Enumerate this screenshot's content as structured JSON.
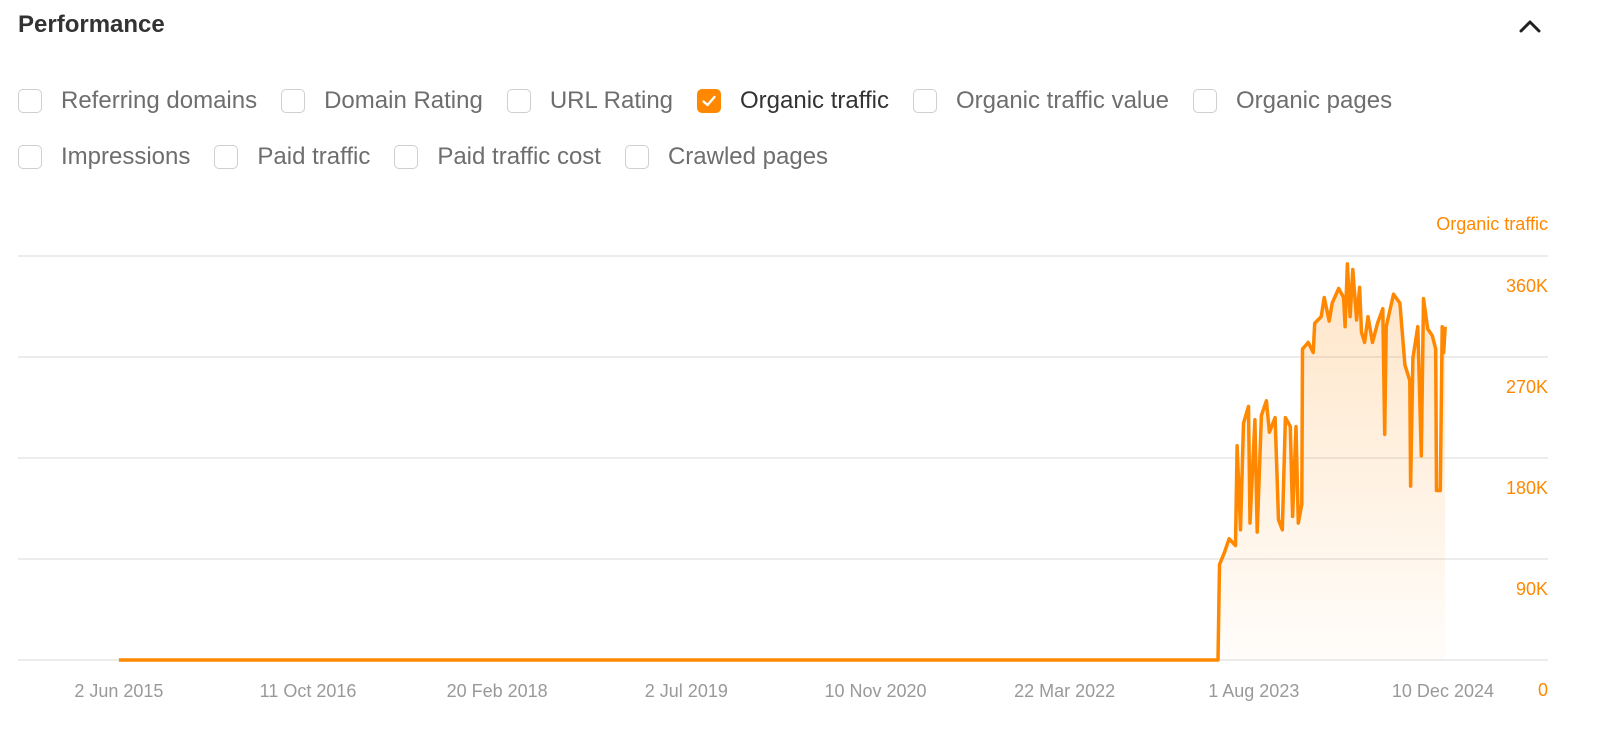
{
  "header": {
    "title": "Performance",
    "collapse_icon": "chevron-up-icon"
  },
  "metrics": [
    {
      "label": "Referring domains",
      "checked": false
    },
    {
      "label": "Domain Rating",
      "checked": false
    },
    {
      "label": "URL Rating",
      "checked": false
    },
    {
      "label": "Organic traffic",
      "checked": true
    },
    {
      "label": "Organic traffic value",
      "checked": false
    },
    {
      "label": "Organic pages",
      "checked": false
    },
    {
      "label": "Impressions",
      "checked": false
    },
    {
      "label": "Paid traffic",
      "checked": false
    },
    {
      "label": "Paid traffic cost",
      "checked": false
    },
    {
      "label": "Crawled pages",
      "checked": false
    }
  ],
  "colors": {
    "accent": "#ff8800",
    "grid": "#e6e6e6",
    "axis_text": "#999999"
  },
  "chart_data": {
    "type": "area",
    "title": "",
    "xlabel": "",
    "ylabel": "Organic traffic",
    "xlim": [
      "2014-09-10",
      "2025-09-12"
    ],
    "ylim": [
      0,
      360000
    ],
    "grid": true,
    "y_axis_position": "right",
    "y_ticks": [
      {
        "value": 0,
        "label": "0"
      },
      {
        "value": 90000,
        "label": "90K"
      },
      {
        "value": 180000,
        "label": "180K"
      },
      {
        "value": 270000,
        "label": "270K"
      },
      {
        "value": 360000,
        "label": "360K"
      }
    ],
    "x_ticks": [
      {
        "date": "2015-06-02",
        "label": "2 Jun 2015"
      },
      {
        "date": "2016-10-11",
        "label": "11 Oct 2016"
      },
      {
        "date": "2018-02-20",
        "label": "20 Feb 2018"
      },
      {
        "date": "2019-07-02",
        "label": "2 Jul 2019"
      },
      {
        "date": "2020-11-10",
        "label": "10 Nov 2020"
      },
      {
        "date": "2022-03-22",
        "label": "22 Mar 2022"
      },
      {
        "date": "2023-08-01",
        "label": "1 Aug 2023"
      },
      {
        "date": "2024-12-10",
        "label": "10 Dec 2024"
      }
    ],
    "series": [
      {
        "name": "Organic traffic",
        "color": "#ff8800",
        "points": [
          [
            "2015-06-02",
            0
          ],
          [
            "2023-04-29",
            0
          ],
          [
            "2023-05-03",
            85000
          ],
          [
            "2023-05-16",
            96000
          ],
          [
            "2023-05-28",
            108000
          ],
          [
            "2023-06-14",
            102000
          ],
          [
            "2023-06-18",
            191000
          ],
          [
            "2023-06-27",
            116000
          ],
          [
            "2023-07-05",
            211000
          ],
          [
            "2023-07-18",
            226000
          ],
          [
            "2023-07-22",
            122000
          ],
          [
            "2023-08-04",
            214000
          ],
          [
            "2023-08-10",
            114000
          ],
          [
            "2023-08-21",
            218000
          ],
          [
            "2023-09-03",
            231000
          ],
          [
            "2023-09-11",
            203000
          ],
          [
            "2023-09-26",
            216000
          ],
          [
            "2023-10-05",
            125000
          ],
          [
            "2023-10-15",
            116000
          ],
          [
            "2023-10-23",
            216000
          ],
          [
            "2023-11-05",
            208000
          ],
          [
            "2023-11-11",
            128000
          ],
          [
            "2023-11-20",
            208000
          ],
          [
            "2023-11-26",
            122000
          ],
          [
            "2023-12-05",
            139000
          ],
          [
            "2023-12-07",
            277000
          ],
          [
            "2023-12-22",
            283000
          ],
          [
            "2024-01-04",
            274000
          ],
          [
            "2024-01-08",
            300000
          ],
          [
            "2024-01-25",
            306000
          ],
          [
            "2024-02-02",
            323000
          ],
          [
            "2024-02-15",
            302000
          ],
          [
            "2024-02-23",
            318000
          ],
          [
            "2024-03-11",
            331000
          ],
          [
            "2024-03-24",
            323000
          ],
          [
            "2024-03-28",
            297000
          ],
          [
            "2024-04-03",
            353000
          ],
          [
            "2024-04-10",
            306000
          ],
          [
            "2024-04-17",
            348000
          ],
          [
            "2024-04-27",
            303000
          ],
          [
            "2024-05-05",
            332000
          ],
          [
            "2024-05-10",
            292000
          ],
          [
            "2024-05-18",
            283000
          ],
          [
            "2024-05-27",
            306000
          ],
          [
            "2024-06-08",
            283000
          ],
          [
            "2024-06-21",
            300000
          ],
          [
            "2024-07-05",
            313000
          ],
          [
            "2024-07-10",
            201000
          ],
          [
            "2024-07-14",
            297000
          ],
          [
            "2024-08-02",
            326000
          ],
          [
            "2024-08-19",
            318000
          ],
          [
            "2024-09-01",
            263000
          ],
          [
            "2024-09-14",
            249000
          ],
          [
            "2024-09-16",
            155000
          ],
          [
            "2024-09-22",
            269000
          ],
          [
            "2024-10-05",
            297000
          ],
          [
            "2024-10-14",
            182000
          ],
          [
            "2024-10-20",
            322000
          ],
          [
            "2024-10-31",
            295000
          ],
          [
            "2024-11-12",
            289000
          ],
          [
            "2024-11-21",
            277000
          ],
          [
            "2024-11-23",
            151000
          ],
          [
            "2024-12-03",
            151000
          ],
          [
            "2024-12-08",
            297000
          ],
          [
            "2024-12-12",
            274000
          ],
          [
            "2024-12-16",
            297000
          ]
        ]
      }
    ]
  }
}
